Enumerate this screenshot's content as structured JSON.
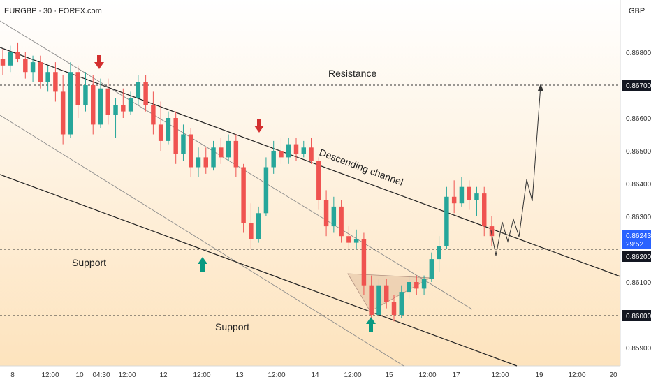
{
  "header": {
    "symbol_label": "EURGBP · 30 · FOREX.com",
    "currency": "GBP"
  },
  "colors": {
    "bull": "#26a69a",
    "bear": "#ef5350",
    "accent_blue": "#2962ff",
    "line_dark": "#222222",
    "arrow_red": "#d32f2f",
    "arrow_green": "#089981",
    "bg_top": "#ffffff",
    "bg_bottom": "#fde3bd"
  },
  "chart_data": {
    "type": "candlestick",
    "y_ticks": [
      "0.86800",
      "0.86600",
      "0.86500",
      "0.86400",
      "0.86300",
      "0.86100",
      "0.85900"
    ],
    "y_tick_values": [
      0.868,
      0.866,
      0.865,
      0.864,
      0.863,
      0.861,
      0.859
    ],
    "y_highlight": [
      {
        "label": "0.86700",
        "value": 0.867
      },
      {
        "label": "0.86200",
        "value": 0.862
      },
      {
        "label": "0.86000",
        "value": 0.86
      }
    ],
    "price_badge": {
      "value": "0.86243",
      "countdown": "29:52",
      "price": 0.86243
    },
    "x_ticks": [
      "8",
      "12:00",
      "10",
      "04:30",
      "12:00",
      "12",
      "12:00",
      "13",
      "12:00",
      "14",
      "12:00",
      "15",
      "12:00",
      "17",
      "12:00",
      "19",
      "12:00",
      "20"
    ],
    "annotations": {
      "resistance": "Resistance",
      "channel": "Descending channel",
      "support_upper": "Support",
      "support_lower": "Support"
    },
    "horizontal_levels": [
      0.867,
      0.862,
      0.86
    ],
    "markers": {
      "red_arrows": 2,
      "green_arrows": 2
    },
    "candles_ohlc": [
      [
        0.8678,
        0.8681,
        0.8673,
        0.8676
      ],
      [
        0.8676,
        0.8682,
        0.8674,
        0.868
      ],
      [
        0.868,
        0.8683,
        0.8677,
        0.8678
      ],
      [
        0.8678,
        0.868,
        0.8672,
        0.8674
      ],
      [
        0.8674,
        0.8679,
        0.8671,
        0.8677
      ],
      [
        0.8677,
        0.8679,
        0.8669,
        0.8671
      ],
      [
        0.8671,
        0.8676,
        0.8668,
        0.8674
      ],
      [
        0.8674,
        0.8677,
        0.8665,
        0.8668
      ],
      [
        0.8668,
        0.8673,
        0.8652,
        0.8655
      ],
      [
        0.8655,
        0.8677,
        0.8654,
        0.8674
      ],
      [
        0.8674,
        0.8676,
        0.866,
        0.8664
      ],
      [
        0.8664,
        0.8674,
        0.8662,
        0.867
      ],
      [
        0.867,
        0.8673,
        0.8655,
        0.8658
      ],
      [
        0.8658,
        0.8672,
        0.8657,
        0.8669
      ],
      [
        0.8669,
        0.8672,
        0.8658,
        0.8661
      ],
      [
        0.8661,
        0.8666,
        0.8654,
        0.8664
      ],
      [
        0.8664,
        0.8669,
        0.866,
        0.8662
      ],
      [
        0.8662,
        0.8668,
        0.8661,
        0.8666
      ],
      [
        0.8666,
        0.8673,
        0.8664,
        0.8671
      ],
      [
        0.8671,
        0.8673,
        0.8662,
        0.8664
      ],
      [
        0.8664,
        0.8668,
        0.8655,
        0.8658
      ],
      [
        0.8658,
        0.8665,
        0.865,
        0.8653
      ],
      [
        0.8653,
        0.8662,
        0.8652,
        0.866
      ],
      [
        0.866,
        0.8662,
        0.8646,
        0.8649
      ],
      [
        0.8649,
        0.8658,
        0.8647,
        0.8655
      ],
      [
        0.8655,
        0.8657,
        0.8642,
        0.8645
      ],
      [
        0.8645,
        0.8651,
        0.8642,
        0.8648
      ],
      [
        0.8648,
        0.8651,
        0.8643,
        0.8645
      ],
      [
        0.8645,
        0.8653,
        0.8644,
        0.8651
      ],
      [
        0.8651,
        0.8654,
        0.8646,
        0.8648
      ],
      [
        0.8648,
        0.8655,
        0.8647,
        0.8653
      ],
      [
        0.8653,
        0.8655,
        0.8642,
        0.8645
      ],
      [
        0.8645,
        0.8646,
        0.8625,
        0.8628
      ],
      [
        0.8628,
        0.8634,
        0.862,
        0.8623
      ],
      [
        0.8623,
        0.8633,
        0.8622,
        0.8631
      ],
      [
        0.8631,
        0.8648,
        0.863,
        0.8645
      ],
      [
        0.8645,
        0.8653,
        0.8643,
        0.865
      ],
      [
        0.865,
        0.8654,
        0.8646,
        0.8648
      ],
      [
        0.8648,
        0.8654,
        0.8646,
        0.8652
      ],
      [
        0.8652,
        0.8654,
        0.8647,
        0.8649
      ],
      [
        0.8649,
        0.8653,
        0.8648,
        0.8651
      ],
      [
        0.8651,
        0.8654,
        0.8646,
        0.8647
      ],
      [
        0.8647,
        0.8648,
        0.8632,
        0.8635
      ],
      [
        0.8635,
        0.8638,
        0.8624,
        0.8627
      ],
      [
        0.8627,
        0.8636,
        0.8625,
        0.8633
      ],
      [
        0.8633,
        0.8635,
        0.8622,
        0.8624
      ],
      [
        0.8624,
        0.8627,
        0.862,
        0.8622
      ],
      [
        0.8622,
        0.8626,
        0.862,
        0.8623
      ],
      [
        0.8623,
        0.8625,
        0.8606,
        0.8609
      ],
      [
        0.8609,
        0.8612,
        0.8597,
        0.86
      ],
      [
        0.86,
        0.8611,
        0.8599,
        0.8609
      ],
      [
        0.8609,
        0.8611,
        0.8602,
        0.8604
      ],
      [
        0.8604,
        0.8606,
        0.8598,
        0.86
      ],
      [
        0.86,
        0.8609,
        0.8599,
        0.8607
      ],
      [
        0.8607,
        0.8612,
        0.8605,
        0.861
      ],
      [
        0.861,
        0.8612,
        0.8606,
        0.8608
      ],
      [
        0.8608,
        0.8612,
        0.8606,
        0.8611
      ],
      [
        0.8611,
        0.8619,
        0.861,
        0.8617
      ],
      [
        0.8617,
        0.8624,
        0.8613,
        0.8621
      ],
      [
        0.8621,
        0.8639,
        0.862,
        0.8636
      ],
      [
        0.8636,
        0.8641,
        0.8631,
        0.8634
      ],
      [
        0.8634,
        0.8642,
        0.8633,
        0.8639
      ],
      [
        0.8639,
        0.8641,
        0.8632,
        0.8635
      ],
      [
        0.8635,
        0.8639,
        0.863,
        0.8637
      ],
      [
        0.8637,
        0.8639,
        0.8624,
        0.8627
      ],
      [
        0.8627,
        0.863,
        0.8621,
        0.8624
      ]
    ],
    "projection": "zigzag up to 0.86700"
  }
}
